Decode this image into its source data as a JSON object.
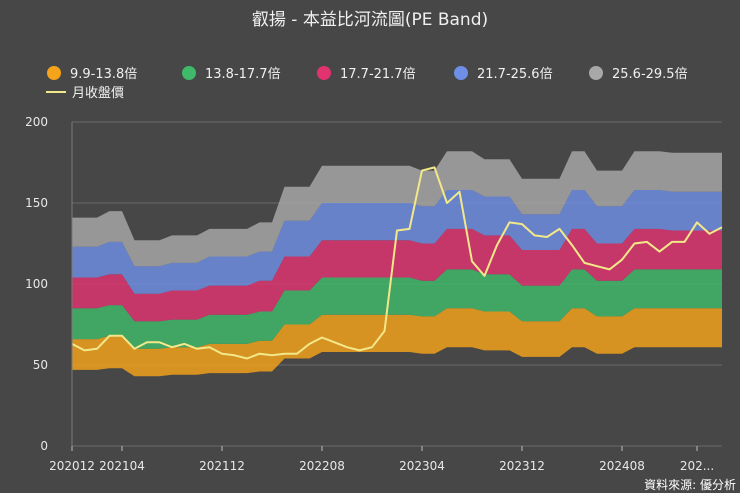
{
  "chart_data": {
    "type": "area",
    "title": "叡揚 - 本益比河流圖(PE Band)",
    "source": "資料來源: 優分析",
    "x_tick_labels": [
      "202012",
      "202104",
      "202112",
      "202208",
      "202304",
      "202312",
      "202408",
      "202..."
    ],
    "x_tick_index": [
      0,
      4,
      12,
      20,
      28,
      36,
      44,
      50
    ],
    "ylim": [
      0,
      200
    ],
    "yticks": [
      0,
      50,
      100,
      150,
      200
    ],
    "grid": "horizontal",
    "legend_position": "top",
    "bands": [
      {
        "name": "9.9-13.8倍",
        "color": "#f5a31a"
      },
      {
        "name": "13.8-17.7倍",
        "color": "#3fb96a"
      },
      {
        "name": "17.7-21.7倍",
        "color": "#e0336f"
      },
      {
        "name": "21.7-25.6倍",
        "color": "#6f8fe6"
      },
      {
        "name": "25.6-29.5倍",
        "color": "#a8a8a8"
      }
    ],
    "line": {
      "name": "月收盤價",
      "color": "#f2e88a"
    },
    "boundaries": [
      [
        47,
        47,
        47,
        48,
        48,
        43,
        43,
        43,
        44,
        44,
        44,
        45,
        45,
        45,
        45,
        46,
        46,
        54,
        54,
        54,
        58,
        58,
        58,
        58,
        58,
        58,
        58,
        58,
        57,
        57,
        61,
        61,
        61,
        59,
        59,
        59,
        55,
        55,
        55,
        55,
        61,
        61,
        57,
        57,
        57,
        61,
        61,
        61,
        61,
        61,
        61,
        61,
        61
      ],
      [
        66,
        66,
        66,
        68,
        68,
        60,
        60,
        60,
        61,
        61,
        61,
        63,
        63,
        63,
        63,
        65,
        65,
        75,
        75,
        75,
        81,
        81,
        81,
        81,
        81,
        81,
        81,
        81,
        80,
        80,
        85,
        85,
        85,
        83,
        83,
        83,
        77,
        77,
        77,
        77,
        85,
        85,
        80,
        80,
        80,
        85,
        85,
        85,
        85,
        85,
        85,
        85,
        85
      ],
      [
        85,
        85,
        85,
        87,
        87,
        77,
        77,
        77,
        78,
        78,
        78,
        81,
        81,
        81,
        81,
        83,
        83,
        96,
        96,
        96,
        104,
        104,
        104,
        104,
        104,
        104,
        104,
        104,
        102,
        102,
        109,
        109,
        109,
        106,
        106,
        106,
        99,
        99,
        99,
        99,
        109,
        109,
        102,
        102,
        102,
        109,
        109,
        109,
        109,
        109,
        109,
        109,
        109
      ],
      [
        104,
        104,
        104,
        106,
        106,
        94,
        94,
        94,
        96,
        96,
        96,
        99,
        99,
        99,
        99,
        102,
        102,
        117,
        117,
        117,
        127,
        127,
        127,
        127,
        127,
        127,
        127,
        127,
        125,
        125,
        134,
        134,
        134,
        130,
        130,
        130,
        121,
        121,
        121,
        121,
        134,
        134,
        125,
        125,
        125,
        134,
        134,
        134,
        133,
        133,
        133,
        133,
        133
      ],
      [
        123,
        123,
        123,
        126,
        126,
        111,
        111,
        111,
        113,
        113,
        113,
        117,
        117,
        117,
        117,
        120,
        120,
        139,
        139,
        139,
        150,
        150,
        150,
        150,
        150,
        150,
        150,
        150,
        148,
        148,
        158,
        158,
        158,
        154,
        154,
        154,
        143,
        143,
        143,
        143,
        158,
        158,
        148,
        148,
        148,
        158,
        158,
        158,
        157,
        157,
        157,
        157,
        157
      ],
      [
        141,
        141,
        141,
        145,
        145,
        127,
        127,
        127,
        130,
        130,
        130,
        134,
        134,
        134,
        134,
        138,
        138,
        160,
        160,
        160,
        173,
        173,
        173,
        173,
        173,
        173,
        173,
        173,
        170,
        170,
        182,
        182,
        182,
        177,
        177,
        177,
        165,
        165,
        165,
        165,
        182,
        182,
        170,
        170,
        170,
        182,
        182,
        182,
        181,
        181,
        181,
        181,
        181
      ]
    ],
    "price": [
      63,
      59,
      60,
      68,
      68,
      60,
      64,
      64,
      61,
      63,
      60,
      61,
      57,
      56,
      54,
      57,
      56,
      57,
      57,
      63,
      67,
      64,
      61,
      59,
      61,
      71,
      133,
      134,
      170,
      172,
      150,
      157,
      114,
      105,
      124,
      138,
      137,
      130,
      129,
      134,
      124,
      113,
      111,
      109,
      115,
      125,
      126,
      120,
      126,
      126,
      138,
      131,
      135
    ]
  }
}
